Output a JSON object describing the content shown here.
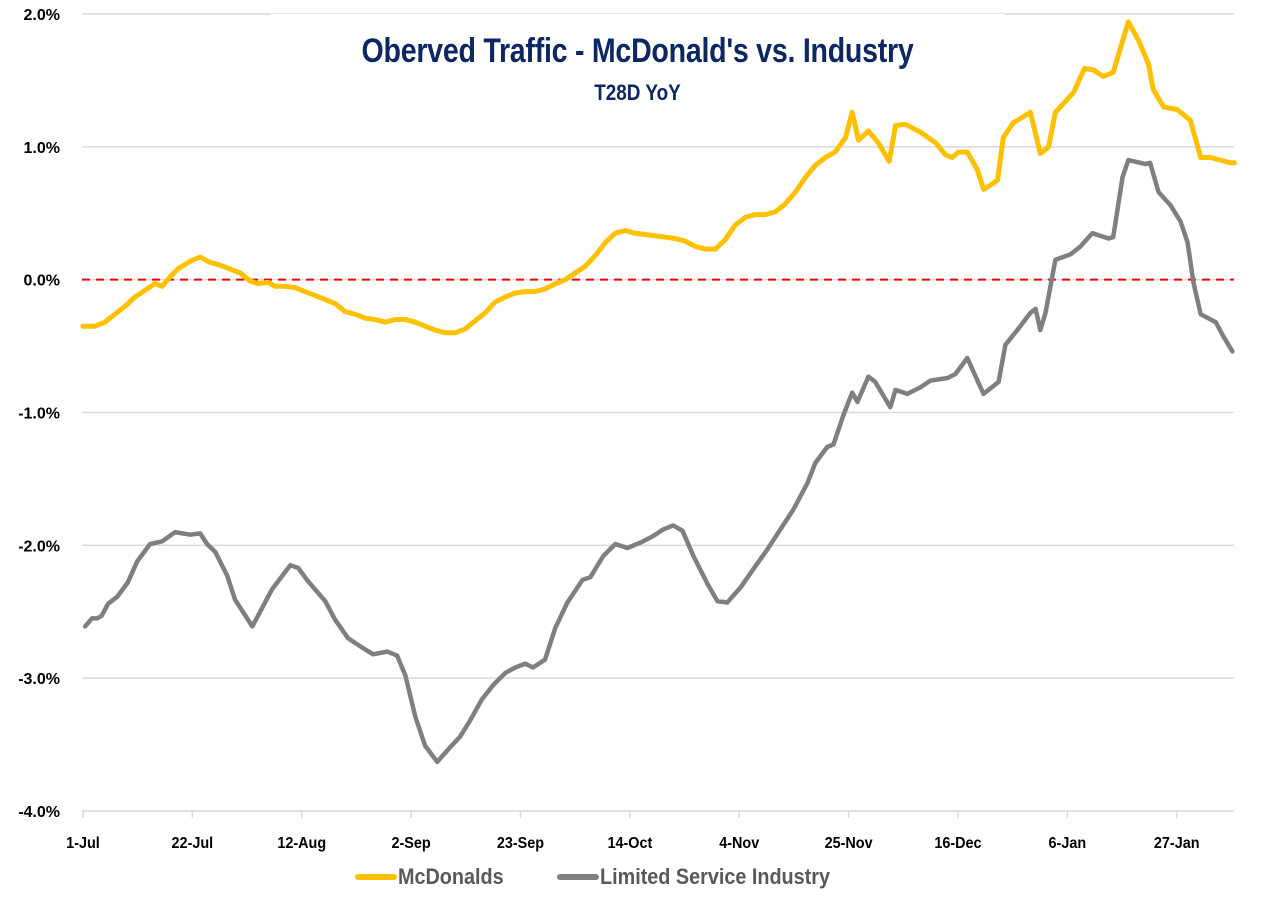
{
  "chart_data": {
    "type": "line",
    "title": "Oberved Traffic - McDonald's vs. Industry",
    "subtitle": "T28D YoY",
    "xlabel": "",
    "ylabel": "",
    "x_unit": "days since 1-Jul",
    "xlim": [
      0,
      221
    ],
    "ylim": [
      -4.0,
      2.0
    ],
    "y_ticks": [
      2.0,
      1.0,
      0.0,
      -1.0,
      -2.0,
      -3.0,
      -4.0
    ],
    "y_tick_labels": [
      "2.0%",
      "1.0%",
      "0.0%",
      "-1.0%",
      "-2.0%",
      "-3.0%",
      "-4.0%"
    ],
    "x_ticks": [
      0,
      21,
      42,
      63,
      84,
      105,
      126,
      147,
      168,
      189,
      210
    ],
    "x_tick_labels": [
      "1-Jul",
      "22-Jul",
      "12-Aug",
      "2-Sep",
      "23-Sep",
      "14-Oct",
      "4-Nov",
      "25-Nov",
      "16-Dec",
      "6-Jan",
      "27-Jan"
    ],
    "grid": true,
    "reference_line": {
      "y": 0.0,
      "style": "dashed",
      "color": "#ff0000"
    },
    "legend_position": "bottom",
    "series": [
      {
        "name": "McDonalds",
        "color": "#ffc000",
        "points": [
          [
            0,
            -0.35
          ],
          [
            2.3,
            -0.35
          ],
          [
            4.2,
            -0.32
          ],
          [
            6.1,
            -0.26
          ],
          [
            8.1,
            -0.2
          ],
          [
            10,
            -0.13
          ],
          [
            11.9,
            -0.08
          ],
          [
            13.8,
            -0.03
          ],
          [
            15.2,
            -0.05
          ],
          [
            16.7,
            0.02
          ],
          [
            18.2,
            0.08
          ],
          [
            20.6,
            0.14
          ],
          [
            22.5,
            0.17
          ],
          [
            24.4,
            0.13
          ],
          [
            26.3,
            0.11
          ],
          [
            28.2,
            0.08
          ],
          [
            30.2,
            0.05
          ],
          [
            32.1,
            -0.01
          ],
          [
            33.6,
            -0.03
          ],
          [
            35.5,
            -0.02
          ],
          [
            36.9,
            -0.05
          ],
          [
            38.8,
            -0.05
          ],
          [
            40.7,
            -0.06
          ],
          [
            42.6,
            -0.09
          ],
          [
            44.6,
            -0.12
          ],
          [
            46.5,
            -0.15
          ],
          [
            48.4,
            -0.18
          ],
          [
            50.3,
            -0.24
          ],
          [
            52.2,
            -0.26
          ],
          [
            54.2,
            -0.29
          ],
          [
            56.1,
            -0.3
          ],
          [
            58,
            -0.32
          ],
          [
            59.9,
            -0.3
          ],
          [
            61.9,
            -0.3
          ],
          [
            63.8,
            -0.32
          ],
          [
            65.7,
            -0.35
          ],
          [
            67.6,
            -0.38
          ],
          [
            69.5,
            -0.4
          ],
          [
            71.5,
            -0.4
          ],
          [
            73.4,
            -0.37
          ],
          [
            75.3,
            -0.31
          ],
          [
            77.2,
            -0.25
          ],
          [
            79.1,
            -0.17
          ],
          [
            81.1,
            -0.13
          ],
          [
            83,
            -0.1
          ],
          [
            84.9,
            -0.09
          ],
          [
            86.8,
            -0.09
          ],
          [
            88.7,
            -0.07
          ],
          [
            90.7,
            -0.03
          ],
          [
            92.6,
            0
          ],
          [
            94.5,
            0.05
          ],
          [
            96.4,
            0.1
          ],
          [
            98.3,
            0.18
          ],
          [
            100.3,
            0.28
          ],
          [
            102.2,
            0.35
          ],
          [
            104.1,
            0.37
          ],
          [
            106,
            0.35
          ],
          [
            108,
            0.34
          ],
          [
            109.9,
            0.33
          ],
          [
            111.8,
            0.32
          ],
          [
            113.7,
            0.31
          ],
          [
            115.6,
            0.29
          ],
          [
            117.6,
            0.25
          ],
          [
            119.5,
            0.23
          ],
          [
            121.4,
            0.23
          ],
          [
            123.3,
            0.3
          ],
          [
            125.2,
            0.41
          ],
          [
            127.2,
            0.47
          ],
          [
            129.1,
            0.49
          ],
          [
            131,
            0.49
          ],
          [
            132.9,
            0.51
          ],
          [
            134.8,
            0.57
          ],
          [
            136.8,
            0.66
          ],
          [
            138.7,
            0.77
          ],
          [
            140.6,
            0.86
          ],
          [
            142.5,
            0.92
          ],
          [
            144.4,
            0.96
          ],
          [
            146.4,
            1.07
          ],
          [
            147.7,
            1.26
          ],
          [
            148.9,
            1.05
          ],
          [
            150.8,
            1.12
          ],
          [
            152.7,
            1.03
          ],
          [
            154.8,
            0.89
          ],
          [
            156,
            1.16
          ],
          [
            157.9,
            1.17
          ],
          [
            160.8,
            1.11
          ],
          [
            163.7,
            1.03
          ],
          [
            165.6,
            0.94
          ],
          [
            166.9,
            0.92
          ],
          [
            168.1,
            0.96
          ],
          [
            169.8,
            0.96
          ],
          [
            171.7,
            0.83
          ],
          [
            172.9,
            0.68
          ],
          [
            174.6,
            0.72
          ],
          [
            175.6,
            0.75
          ],
          [
            176.7,
            1.07
          ],
          [
            178.6,
            1.18
          ],
          [
            181.9,
            1.26
          ],
          [
            183.8,
            0.95
          ],
          [
            185.4,
            1.0
          ],
          [
            186.7,
            1.26
          ],
          [
            190.2,
            1.41
          ],
          [
            192.3,
            1.59
          ],
          [
            194,
            1.58
          ],
          [
            195.9,
            1.53
          ],
          [
            197.8,
            1.56
          ],
          [
            200.7,
            1.94
          ],
          [
            202.7,
            1.8
          ],
          [
            204.6,
            1.62
          ],
          [
            205.5,
            1.43
          ],
          [
            207.5,
            1.3
          ],
          [
            210.1,
            1.28
          ],
          [
            212.6,
            1.2
          ],
          [
            214.6,
            0.92
          ],
          [
            216.5,
            0.92
          ],
          [
            220.3,
            0.88
          ],
          [
            221.1,
            0.88
          ]
        ]
      },
      {
        "name": "Limited Service Industry",
        "color": "#7f7f7f",
        "points": [
          [
            0.4,
            -2.61
          ],
          [
            1.7,
            -2.55
          ],
          [
            2.7,
            -2.55
          ],
          [
            3.6,
            -2.53
          ],
          [
            4.8,
            -2.44
          ],
          [
            6.5,
            -2.39
          ],
          [
            8.6,
            -2.28
          ],
          [
            10.4,
            -2.12
          ],
          [
            12.9,
            -1.99
          ],
          [
            15.2,
            -1.97
          ],
          [
            17.7,
            -1.9
          ],
          [
            20.6,
            -1.92
          ],
          [
            22.5,
            -1.91
          ],
          [
            23.8,
            -1.99
          ],
          [
            25.4,
            -2.05
          ],
          [
            27.7,
            -2.23
          ],
          [
            29.2,
            -2.41
          ],
          [
            32.5,
            -2.61
          ],
          [
            34,
            -2.5
          ],
          [
            36.3,
            -2.33
          ],
          [
            39.8,
            -2.15
          ],
          [
            41.3,
            -2.17
          ],
          [
            43.2,
            -2.27
          ],
          [
            46.5,
            -2.42
          ],
          [
            48.4,
            -2.56
          ],
          [
            50.9,
            -2.7
          ],
          [
            53.6,
            -2.77
          ],
          [
            55.7,
            -2.82
          ],
          [
            58.4,
            -2.8
          ],
          [
            60.3,
            -2.83
          ],
          [
            61.9,
            -2.98
          ],
          [
            63.8,
            -3.29
          ],
          [
            65.7,
            -3.51
          ],
          [
            68,
            -3.63
          ],
          [
            70.5,
            -3.52
          ],
          [
            72.4,
            -3.44
          ],
          [
            74.3,
            -3.32
          ],
          [
            76.6,
            -3.16
          ],
          [
            78.8,
            -3.05
          ],
          [
            81.1,
            -2.96
          ],
          [
            83,
            -2.92
          ],
          [
            84.9,
            -2.89
          ],
          [
            86.4,
            -2.92
          ],
          [
            88.7,
            -2.86
          ],
          [
            90.7,
            -2.62
          ],
          [
            93,
            -2.43
          ],
          [
            95.9,
            -2.26
          ],
          [
            97.4,
            -2.24
          ],
          [
            99.9,
            -2.08
          ],
          [
            102.2,
            -1.99
          ],
          [
            104.5,
            -2.02
          ],
          [
            107,
            -1.98
          ],
          [
            109.5,
            -1.93
          ],
          [
            111.4,
            -1.88
          ],
          [
            113.3,
            -1.85
          ],
          [
            115.1,
            -1.89
          ],
          [
            117.2,
            -2.08
          ],
          [
            119.9,
            -2.29
          ],
          [
            121.8,
            -2.42
          ],
          [
            123.7,
            -2.43
          ],
          [
            126.2,
            -2.32
          ],
          [
            128.7,
            -2.18
          ],
          [
            131.4,
            -2.03
          ],
          [
            133.9,
            -1.88
          ],
          [
            136.4,
            -1.73
          ],
          [
            139.1,
            -1.53
          ],
          [
            140.6,
            -1.38
          ],
          [
            142.9,
            -1.26
          ],
          [
            144.1,
            -1.24
          ],
          [
            146,
            -1.02
          ],
          [
            147.7,
            -0.85
          ],
          [
            148.7,
            -0.92
          ],
          [
            150.8,
            -0.73
          ],
          [
            152.1,
            -0.77
          ],
          [
            155,
            -0.96
          ],
          [
            156,
            -0.83
          ],
          [
            158.3,
            -0.86
          ],
          [
            160.8,
            -0.81
          ],
          [
            162.7,
            -0.76
          ],
          [
            166,
            -0.74
          ],
          [
            167.5,
            -0.71
          ],
          [
            169.8,
            -0.59
          ],
          [
            172.9,
            -0.86
          ],
          [
            175.8,
            -0.77
          ],
          [
            177.1,
            -0.49
          ],
          [
            179.4,
            -0.38
          ],
          [
            181.9,
            -0.25
          ],
          [
            182.9,
            -0.22
          ],
          [
            183.8,
            -0.38
          ],
          [
            184.8,
            -0.25
          ],
          [
            186.7,
            0.15
          ],
          [
            189.6,
            0.19
          ],
          [
            191.5,
            0.25
          ],
          [
            193.8,
            0.35
          ],
          [
            196.9,
            0.31
          ],
          [
            197.8,
            0.32
          ],
          [
            199.6,
            0.77
          ],
          [
            200.7,
            0.9
          ],
          [
            203,
            0.88
          ],
          [
            204,
            0.87
          ],
          [
            204.9,
            0.88
          ],
          [
            206.5,
            0.66
          ],
          [
            208.8,
            0.56
          ],
          [
            210.7,
            0.44
          ],
          [
            212.1,
            0.28
          ],
          [
            213.2,
            -0.02
          ],
          [
            214.6,
            -0.26
          ],
          [
            217.5,
            -0.32
          ],
          [
            219,
            -0.43
          ],
          [
            220.7,
            -0.54
          ]
        ]
      }
    ]
  }
}
